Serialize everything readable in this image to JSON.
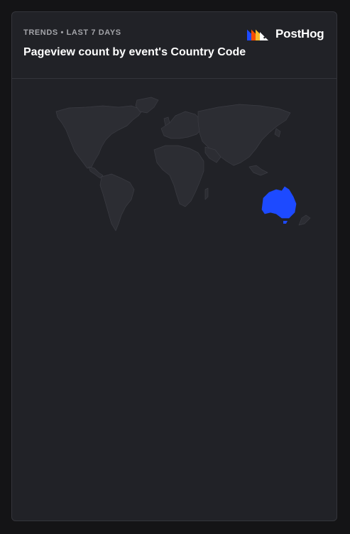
{
  "insight": {
    "subtitle": "TRENDS • LAST 7 DAYS",
    "title": "Pageview count by event's Country Code"
  },
  "brand": {
    "name": "PostHog"
  },
  "map": {
    "type": "world-choropleth",
    "base_color": "#2c2d33",
    "border_color": "#3b3c43",
    "highlight_color": "#1d4aff",
    "highlighted_regions": [
      "AU"
    ]
  }
}
